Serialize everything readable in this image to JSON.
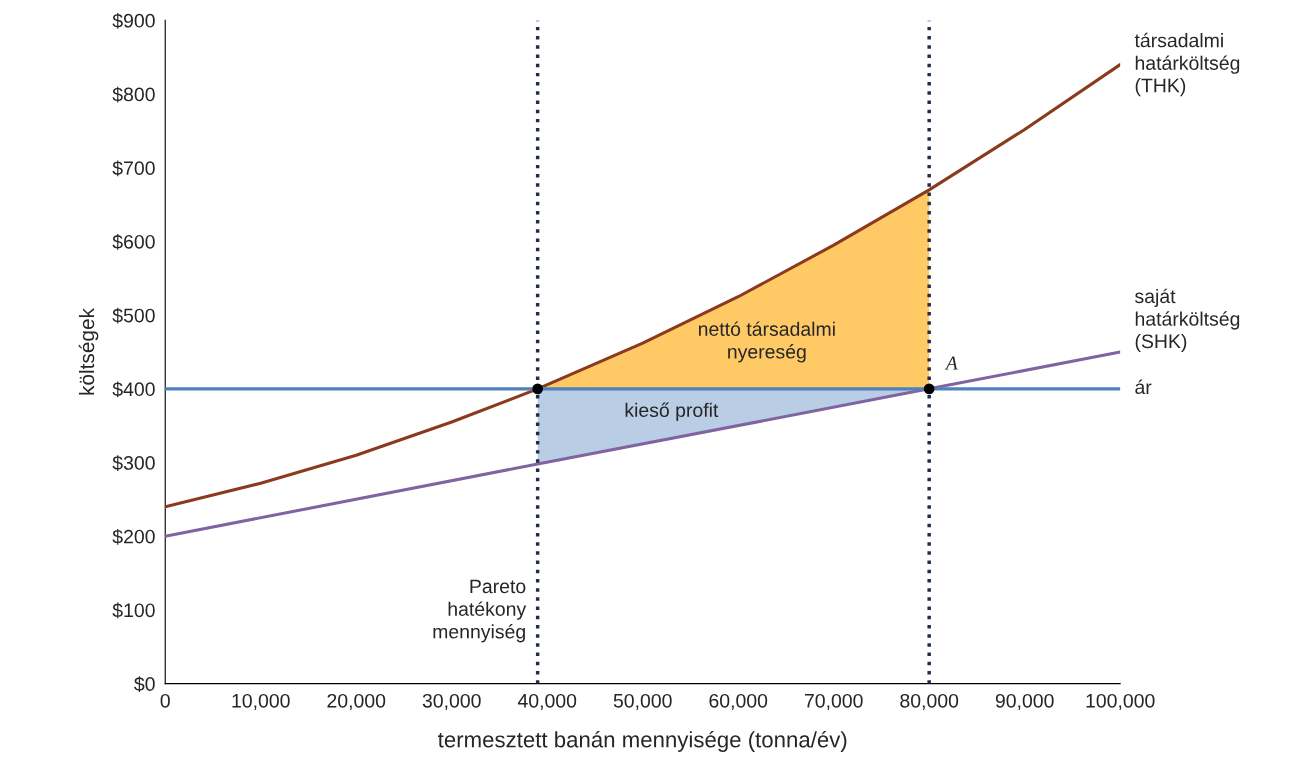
{
  "chart_data": {
    "type": "line",
    "xlabel": "termesztett banán mennyisége (tonna/év)",
    "ylabel": "költségek",
    "xlim": [
      0,
      100000
    ],
    "ylim": [
      0,
      900
    ],
    "xticks": [
      0,
      {
        "value": 10000,
        "label": "10,000"
      },
      {
        "value": 20000,
        "label": "20,000"
      },
      {
        "value": 30000,
        "label": "30,000"
      },
      {
        "value": 40000,
        "label": "40,000"
      },
      {
        "value": 50000,
        "label": "50,000"
      },
      {
        "value": 60000,
        "label": "60,000"
      },
      {
        "value": 70000,
        "label": "70,000"
      },
      {
        "value": 80000,
        "label": "80,000"
      },
      {
        "value": 90000,
        "label": "90,000"
      },
      {
        "value": 100000,
        "label": "100,000"
      }
    ],
    "yticks": [
      {
        "value": 0,
        "label": "$0"
      },
      {
        "value": 100,
        "label": "$100"
      },
      {
        "value": 200,
        "label": "$200"
      },
      {
        "value": 300,
        "label": "$300"
      },
      {
        "value": 400,
        "label": "$400"
      },
      {
        "value": 500,
        "label": "$500"
      },
      {
        "value": 600,
        "label": "$600"
      },
      {
        "value": 700,
        "label": "$700"
      },
      {
        "value": 800,
        "label": "$800"
      },
      {
        "value": 900,
        "label": "$900"
      }
    ],
    "grid": false,
    "legend": false,
    "series": [
      {
        "name": "társadalmi\nhatárköltség\n(THK)",
        "color": "#8b3a1e",
        "x": [
          0,
          10000,
          20000,
          30000,
          39000,
          50000,
          60000,
          70000,
          80000,
          90000,
          100000
        ],
        "values": [
          240,
          272,
          310,
          355,
          400,
          462,
          525,
          595,
          670,
          752,
          840
        ],
        "lower": [
          null,
          null,
          null,
          null,
          400,
          400,
          400,
          400,
          400,
          null,
          null
        ],
        "upper": [
          null,
          null,
          null,
          null,
          400,
          462,
          525,
          595,
          670,
          null,
          null
        ]
      },
      {
        "name": "saját\nhatárköltség\n(SHK)",
        "color": "#8064a2",
        "x": [
          0,
          39000,
          80000,
          100000
        ],
        "values": [
          200,
          298,
          400,
          450
        ],
        "lower": [
          null,
          298,
          400,
          null
        ],
        "upper": [
          null,
          400,
          400,
          null
        ]
      },
      {
        "name": "ár",
        "color": "#4f81bd",
        "x": [
          0,
          100000
        ],
        "values": [
          400,
          400
        ]
      },
      {
        "type": "scatter",
        "color": "#000000",
        "marker": "circle",
        "x": [
          39000,
          80000
        ],
        "values": [
          400,
          400
        ]
      }
    ],
    "ref_lines": [
      {
        "axis": "x",
        "value": 39000,
        "label": "Pareto\nhatékony\nmennyiség",
        "color": "#1f2d4a",
        "line_style": "dotted"
      },
      {
        "axis": "x",
        "value": 80000,
        "color": "#1f2d4a",
        "line_style": "dotted"
      }
    ],
    "annotations": [
      "nettó társadalmi\nnyereség",
      "kieső profit",
      {
        "text": "A",
        "x": 80000,
        "y": 400
      }
    ]
  }
}
